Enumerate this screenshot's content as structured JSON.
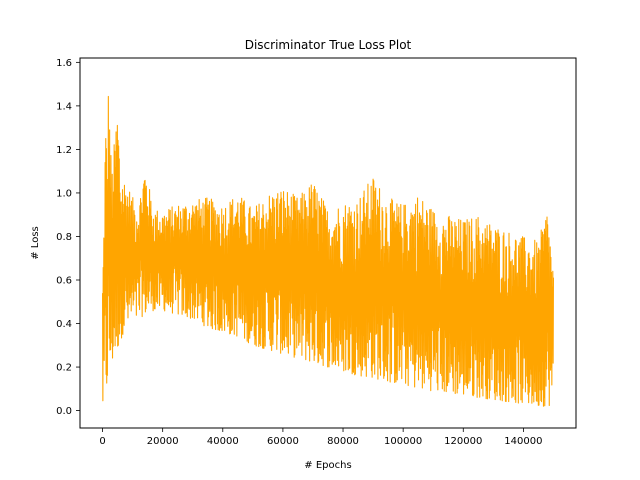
{
  "chart_data": {
    "type": "line",
    "title": "Discriminator True Loss Plot",
    "xlabel": "# Epochs",
    "ylabel": "# Loss",
    "xlim": [
      -7500,
      157500
    ],
    "ylim": [
      -0.08,
      1.62
    ],
    "xticks": [
      0,
      20000,
      40000,
      60000,
      80000,
      100000,
      120000,
      140000
    ],
    "xtick_labels": [
      "0",
      "20000",
      "40000",
      "60000",
      "80000",
      "100000",
      "120000",
      "140000"
    ],
    "yticks": [
      0.0,
      0.2,
      0.4,
      0.6,
      0.8,
      1.0,
      1.2,
      1.4,
      1.6
    ],
    "ytick_labels": [
      "0.0",
      "0.2",
      "0.4",
      "0.6",
      "0.8",
      "1.0",
      "1.2",
      "1.4",
      "1.6"
    ],
    "grid": false,
    "legend": "none",
    "series": [
      {
        "color": "#FFA500",
        "x": [
          0,
          500,
          1000,
          1500,
          2000,
          3000,
          4000,
          5000,
          6000,
          7000,
          8000,
          10000,
          12000,
          14000,
          17000,
          20000,
          25000,
          30000,
          35000,
          40000,
          45000,
          50000,
          55000,
          60000,
          65000,
          70000,
          75000,
          80000,
          85000,
          90000,
          95000,
          100000,
          105000,
          110000,
          115000,
          120000,
          125000,
          130000,
          135000,
          140000,
          145000,
          148000,
          150000
        ],
        "lower": [
          0.0,
          0.0,
          0.05,
          0.1,
          0.15,
          0.2,
          0.25,
          0.28,
          0.32,
          0.36,
          0.38,
          0.4,
          0.42,
          0.44,
          0.46,
          0.46,
          0.44,
          0.42,
          0.38,
          0.36,
          0.34,
          0.3,
          0.28,
          0.26,
          0.24,
          0.22,
          0.2,
          0.18,
          0.16,
          0.15,
          0.13,
          0.12,
          0.1,
          0.09,
          0.08,
          0.07,
          0.06,
          0.05,
          0.04,
          0.03,
          0.02,
          0.02,
          0.03
        ],
        "upper": [
          0.6,
          0.92,
          1.37,
          1.2,
          1.54,
          1.1,
          1.25,
          1.42,
          1.1,
          1.08,
          1.06,
          0.98,
          0.95,
          1.13,
          0.93,
          0.92,
          0.95,
          0.97,
          0.98,
          0.95,
          1.0,
          0.93,
          1.0,
          1.03,
          0.98,
          1.06,
          0.93,
          0.96,
          0.98,
          1.08,
          0.98,
          0.95,
          1.0,
          0.93,
          0.9,
          0.88,
          0.9,
          0.86,
          0.83,
          0.8,
          0.78,
          0.94,
          0.65
        ]
      }
    ]
  }
}
